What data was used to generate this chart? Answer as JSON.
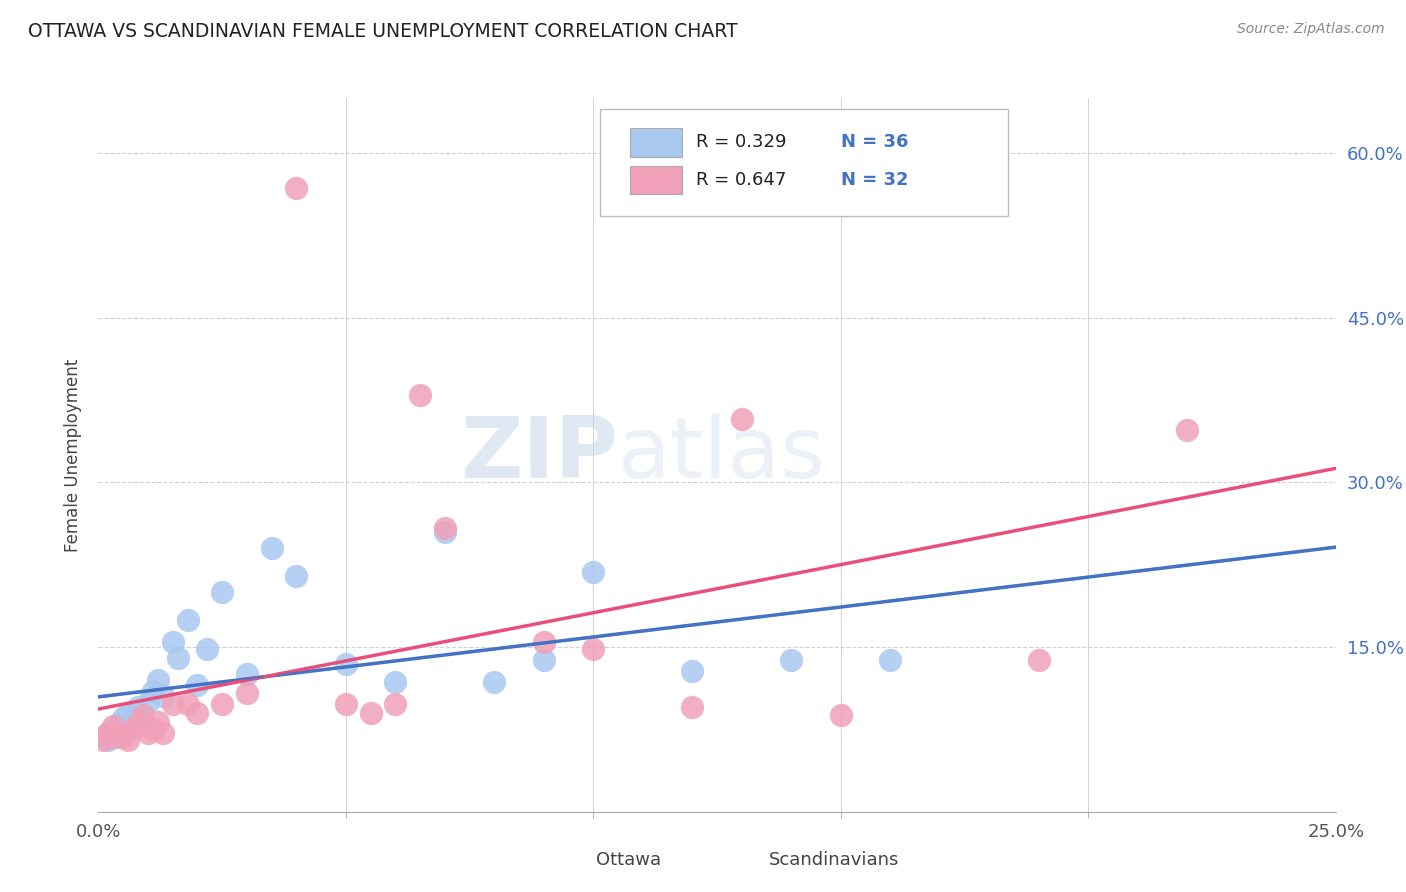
{
  "title": "OTTAWA VS SCANDINAVIAN FEMALE UNEMPLOYMENT CORRELATION CHART",
  "source": "Source: ZipAtlas.com",
  "ylabel": "Female Unemployment",
  "legend_r1": "R = 0.329",
  "legend_n1": "N = 36",
  "legend_r2": "R = 0.647",
  "legend_n2": "N = 32",
  "legend_label1": "Ottawa",
  "legend_label2": "Scandinavians",
  "watermark_zip": "ZIP",
  "watermark_atlas": "atlas",
  "ottawa_color": "#a8c8f0",
  "ottawa_edge_color": "#7aaad0",
  "scandinavians_color": "#f0a0b8",
  "scandinavians_edge_color": "#d07090",
  "ottawa_line_color": "#4472c4",
  "scandinavians_line_color": "#e8507a",
  "tick_color": "#4472c4",
  "grid_color": "#cccccc",
  "ottawa_scatter_x": [
    0.001,
    0.002,
    0.002,
    0.003,
    0.003,
    0.004,
    0.004,
    0.005,
    0.005,
    0.006,
    0.006,
    0.007,
    0.008,
    0.009,
    0.01,
    0.011,
    0.012,
    0.013,
    0.015,
    0.016,
    0.018,
    0.02,
    0.022,
    0.025,
    0.03,
    0.035,
    0.04,
    0.05,
    0.06,
    0.07,
    0.08,
    0.09,
    0.1,
    0.12,
    0.14,
    0.16
  ],
  "ottawa_scatter_y": [
    0.068,
    0.065,
    0.072,
    0.07,
    0.075,
    0.068,
    0.08,
    0.072,
    0.085,
    0.078,
    0.09,
    0.082,
    0.095,
    0.088,
    0.1,
    0.11,
    0.12,
    0.105,
    0.155,
    0.14,
    0.175,
    0.115,
    0.148,
    0.2,
    0.125,
    0.24,
    0.215,
    0.135,
    0.118,
    0.255,
    0.118,
    0.138,
    0.218,
    0.128,
    0.138,
    0.138
  ],
  "scand_scatter_x": [
    0.001,
    0.002,
    0.003,
    0.003,
    0.004,
    0.005,
    0.006,
    0.007,
    0.008,
    0.009,
    0.01,
    0.011,
    0.012,
    0.013,
    0.015,
    0.018,
    0.02,
    0.025,
    0.03,
    0.04,
    0.05,
    0.055,
    0.06,
    0.065,
    0.07,
    0.09,
    0.1,
    0.12,
    0.13,
    0.15,
    0.19,
    0.22
  ],
  "scand_scatter_y": [
    0.065,
    0.072,
    0.068,
    0.078,
    0.072,
    0.068,
    0.065,
    0.075,
    0.08,
    0.088,
    0.072,
    0.075,
    0.082,
    0.072,
    0.098,
    0.098,
    0.09,
    0.098,
    0.108,
    0.568,
    0.098,
    0.09,
    0.098,
    0.38,
    0.258,
    0.155,
    0.148,
    0.095,
    0.358,
    0.088,
    0.138,
    0.348
  ],
  "xlim": [
    0.0,
    0.25
  ],
  "ylim": [
    0.0,
    0.65
  ],
  "yticks": [
    0.15,
    0.3,
    0.45,
    0.6
  ],
  "xticks_major": [
    0.0,
    0.25
  ],
  "xticks_minor": [
    0.05,
    0.1,
    0.15,
    0.2
  ]
}
